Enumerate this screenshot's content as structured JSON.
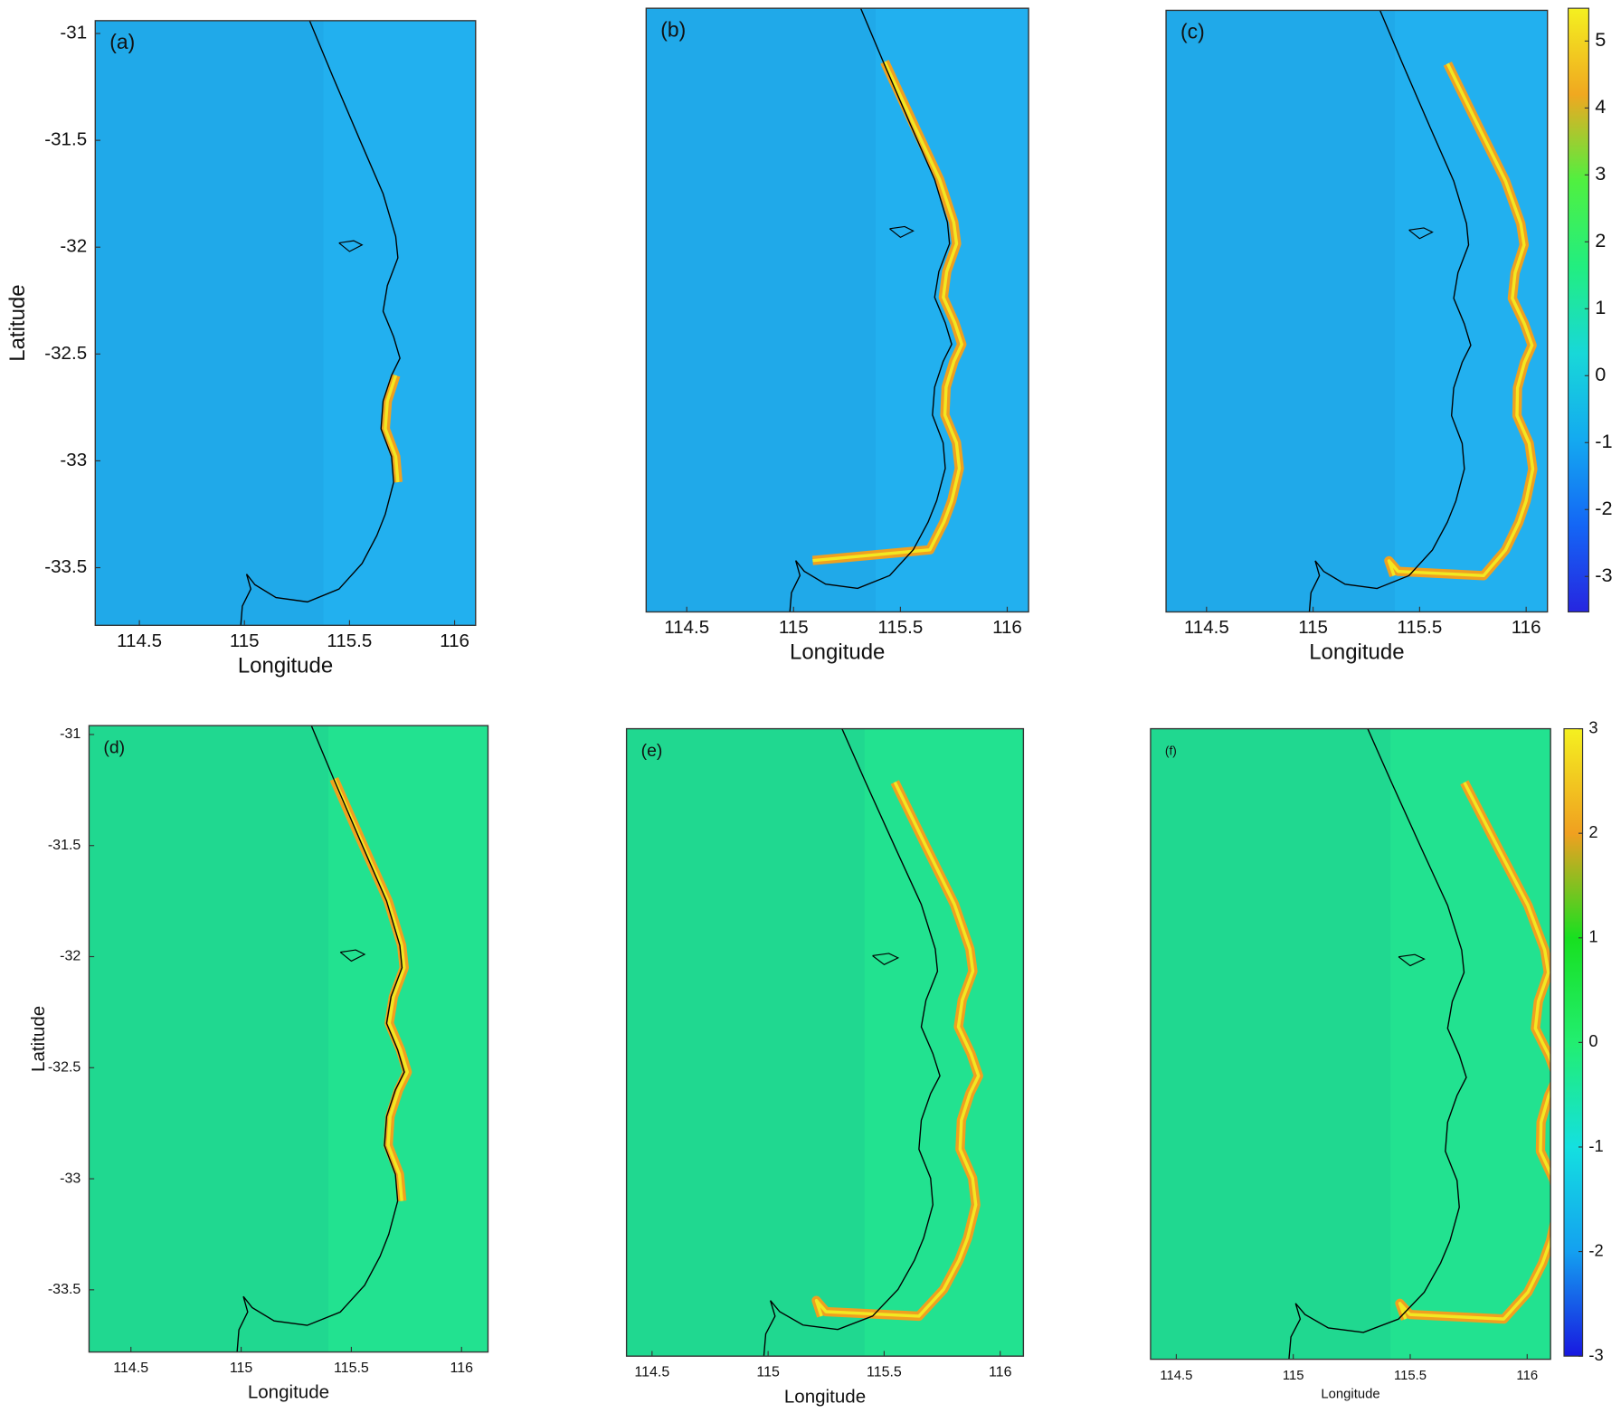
{
  "chart_data": [
    {
      "type": "heatmap",
      "label": "(a)",
      "xlabel": "Longitude",
      "ylabel": "Latitude",
      "background": "#22b0ef",
      "xlim": [
        114.29,
        116.1
      ],
      "ylim": [
        -33.77,
        -30.94
      ],
      "xticks": [
        114.5,
        115,
        115.5,
        116
      ],
      "yticks": [
        -31,
        -31.5,
        -32,
        -32.5,
        -33,
        -33.5
      ]
    },
    {
      "type": "heatmap",
      "label": "(b)",
      "xlabel": "Longitude",
      "background": "#22b0ef",
      "xlim": [
        114.31,
        116.1
      ],
      "ylim": [
        -33.77,
        -30.95
      ],
      "xticks": [
        114.5,
        115,
        115.5,
        116
      ]
    },
    {
      "type": "heatmap",
      "label": "(c)",
      "xlabel": "Longitude",
      "background": "#22b0ef",
      "xlim": [
        114.31,
        116.1
      ],
      "ylim": [
        -33.77,
        -30.95
      ],
      "xticks": [
        114.5,
        115,
        115.5,
        116
      ]
    },
    {
      "type": "colorbar",
      "colors": [
        "#2626e0",
        "#1466f5",
        "#14aaf0",
        "#18d8d8",
        "#22ee80",
        "#50f040",
        "#f0a820",
        "#f4f020"
      ],
      "ylim": [
        -3.53,
        5.49
      ],
      "yticks": [
        -3,
        -2,
        -1,
        0,
        1,
        2,
        3,
        4,
        5
      ]
    },
    {
      "type": "heatmap",
      "label": "(d)",
      "xlabel": "Longitude",
      "ylabel": "Latitude",
      "background": "#22e290",
      "xlim": [
        114.31,
        116.12
      ],
      "ylim": [
        -33.78,
        -30.96
      ],
      "xticks": [
        114.5,
        115,
        115.5,
        116
      ],
      "yticks": [
        -31,
        -31.5,
        -32,
        -32.5,
        -33,
        -33.5
      ]
    },
    {
      "type": "heatmap",
      "label": "(e)",
      "xlabel": "Longitude",
      "background": "#22e290",
      "xlim": [
        114.39,
        116.1
      ],
      "ylim": [
        -33.78,
        -30.96
      ],
      "xticks": [
        114.5,
        115,
        115.5,
        116
      ]
    },
    {
      "type": "heatmap",
      "label": "(f)",
      "xlabel": "Longitude",
      "background": "#22e290",
      "xlim": [
        114.39,
        116.1
      ],
      "ylim": [
        -33.78,
        -30.96
      ],
      "xticks": [
        114.5,
        115,
        115.5,
        116
      ]
    },
    {
      "type": "colorbar",
      "colors": [
        "#1818e0",
        "#14a0f0",
        "#14e0e0",
        "#22ee70",
        "#18e020",
        "#f0a020",
        "#f4f020"
      ],
      "ylim": [
        -3,
        3
      ],
      "yticks": [
        -3,
        -2,
        -1,
        0,
        1,
        2,
        3
      ]
    }
  ]
}
